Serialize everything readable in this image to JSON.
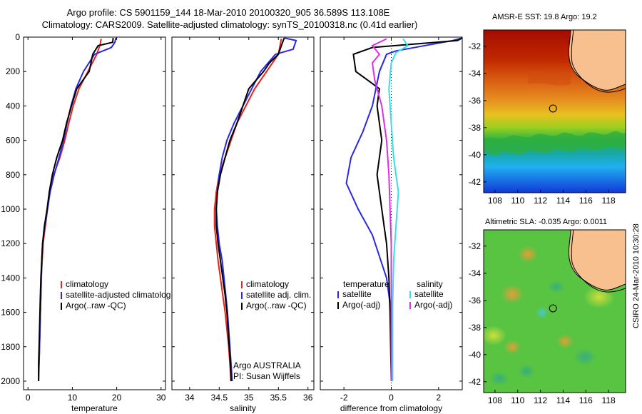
{
  "title_line1": "Argo profile: CS 5901159_144 18-Mar-2010 20100320_905 36.589S 113.108E",
  "title_line2": "Climatology: CARS2009. Satellite-adjusted climatology: synTS_20100318.nc (0.41d earlier)",
  "credit": "CSIRO 24-Mar-2010 10:30:28",
  "colors": {
    "climatology": "#e8221c",
    "satellite": "#2828e6",
    "argo": "#000000",
    "salinity_satellite": "#36e0e6",
    "salinity_argo": "#e02ee6",
    "land": "#f7c08e"
  },
  "chart_data": [
    {
      "type": "line",
      "panel": "temperature",
      "xlabel": "temperature",
      "ylabel": "",
      "xlim": [
        -1,
        31
      ],
      "ylim": [
        2050,
        0
      ],
      "y_reversed": true,
      "xticks": [
        0,
        10,
        20,
        30
      ],
      "yticks": [
        0,
        200,
        400,
        600,
        800,
        1000,
        1200,
        1400,
        1600,
        1800,
        2000
      ],
      "legend_items": [
        "climatology",
        "satellite-adjusted climatolog",
        "Argo(..raw -QC)"
      ],
      "series": [
        {
          "name": "climatology",
          "color_key": "climatology",
          "points": [
            [
              16.5,
              10
            ],
            [
              16.3,
              40
            ],
            [
              15.5,
              100
            ],
            [
              13.5,
              200
            ],
            [
              11.5,
              300
            ],
            [
              10.2,
              400
            ],
            [
              9.2,
              500
            ],
            [
              8.3,
              600
            ],
            [
              7.2,
              700
            ],
            [
              5.8,
              800
            ],
            [
              4.9,
              900
            ],
            [
              4.4,
              1000
            ],
            [
              3.9,
              1100
            ],
            [
              3.4,
              1200
            ],
            [
              3.2,
              1300
            ],
            [
              3.0,
              1400
            ],
            [
              2.9,
              1500
            ],
            [
              2.8,
              1600
            ],
            [
              2.7,
              1700
            ],
            [
              2.6,
              1800
            ],
            [
              2.5,
              1900
            ]
          ]
        },
        {
          "name": "satellite-adjusted climatolog",
          "color_key": "satellite",
          "points": [
            [
              19.8,
              5
            ],
            [
              19.6,
              30
            ],
            [
              18.8,
              60
            ],
            [
              15.0,
              100
            ],
            [
              12.5,
              200
            ],
            [
              10.8,
              300
            ],
            [
              9.7,
              400
            ],
            [
              8.8,
              500
            ],
            [
              8.0,
              600
            ],
            [
              7.0,
              700
            ],
            [
              5.9,
              800
            ],
            [
              5.0,
              900
            ],
            [
              4.4,
              1000
            ],
            [
              3.8,
              1100
            ],
            [
              3.3,
              1200
            ],
            [
              3.1,
              1300
            ],
            [
              3.0,
              1400
            ],
            [
              2.9,
              1500
            ],
            [
              2.8,
              1600
            ],
            [
              2.7,
              1700
            ],
            [
              2.6,
              1800
            ],
            [
              2.5,
              1900
            ],
            [
              2.4,
              2000
            ]
          ]
        },
        {
          "name": "Argo(..raw -QC)",
          "color_key": "argo",
          "points": [
            [
              19.2,
              5
            ],
            [
              19.1,
              30
            ],
            [
              15.8,
              50
            ],
            [
              14.6,
              100
            ],
            [
              13.8,
              200
            ],
            [
              11.0,
              300
            ],
            [
              9.8,
              400
            ],
            [
              8.7,
              500
            ],
            [
              7.8,
              600
            ],
            [
              6.5,
              700
            ],
            [
              5.5,
              800
            ],
            [
              4.8,
              900
            ],
            [
              4.3,
              1000
            ],
            [
              3.7,
              1100
            ],
            [
              3.3,
              1200
            ],
            [
              3.1,
              1300
            ],
            [
              2.9,
              1400
            ],
            [
              2.8,
              1500
            ],
            [
              2.7,
              1600
            ],
            [
              2.6,
              1700
            ],
            [
              2.5,
              1800
            ],
            [
              2.4,
              1900
            ],
            [
              2.4,
              2000
            ]
          ]
        }
      ]
    },
    {
      "type": "line",
      "panel": "salinity",
      "xlabel": "salinity",
      "ylabel": "",
      "xlim": [
        33.7,
        36.1
      ],
      "ylim": [
        2050,
        0
      ],
      "y_reversed": true,
      "xticks": [
        34,
        34.5,
        35,
        35.5,
        36
      ],
      "legend_items": [
        "climatology",
        "satellite adj. clim.",
        "Argo(..raw -QC)"
      ],
      "annotation": [
        "Argo AUSTRALIA",
        "PI: Susan Wijffels"
      ],
      "series": [
        {
          "name": "climatology",
          "color_key": "climatology",
          "points": [
            [
              35.55,
              10
            ],
            [
              35.5,
              100
            ],
            [
              35.3,
              200
            ],
            [
              35.1,
              300
            ],
            [
              34.95,
              400
            ],
            [
              34.8,
              500
            ],
            [
              34.7,
              600
            ],
            [
              34.6,
              700
            ],
            [
              34.5,
              800
            ],
            [
              34.45,
              900
            ],
            [
              34.42,
              1000
            ],
            [
              34.42,
              1100
            ],
            [
              34.45,
              1200
            ],
            [
              34.48,
              1300
            ],
            [
              34.52,
              1400
            ],
            [
              34.56,
              1500
            ],
            [
              34.6,
              1600
            ],
            [
              34.63,
              1700
            ],
            [
              34.66,
              1800
            ],
            [
              34.68,
              1900
            ],
            [
              34.7,
              2000
            ]
          ]
        },
        {
          "name": "satellite adj. clim.",
          "color_key": "satellite",
          "points": [
            [
              35.6,
              5
            ],
            [
              35.8,
              20
            ],
            [
              35.75,
              70
            ],
            [
              35.45,
              100
            ],
            [
              35.2,
              200
            ],
            [
              35.05,
              300
            ],
            [
              34.9,
              400
            ],
            [
              34.75,
              500
            ],
            [
              34.63,
              600
            ],
            [
              34.55,
              700
            ],
            [
              34.5,
              800
            ],
            [
              34.47,
              900
            ],
            [
              34.45,
              1000
            ],
            [
              34.47,
              1100
            ],
            [
              34.5,
              1200
            ],
            [
              34.55,
              1300
            ],
            [
              34.58,
              1400
            ],
            [
              34.61,
              1500
            ],
            [
              34.64,
              1600
            ],
            [
              34.66,
              1700
            ],
            [
              34.68,
              1800
            ],
            [
              34.7,
              1900
            ],
            [
              34.72,
              2000
            ]
          ]
        },
        {
          "name": "Argo(..raw -QC)",
          "color_key": "argo",
          "points": [
            [
              35.6,
              5
            ],
            [
              35.55,
              50
            ],
            [
              35.5,
              100
            ],
            [
              35.35,
              150
            ],
            [
              35.25,
              200
            ],
            [
              35.0,
              300
            ],
            [
              34.9,
              400
            ],
            [
              34.8,
              500
            ],
            [
              34.68,
              600
            ],
            [
              34.6,
              700
            ],
            [
              34.52,
              800
            ],
            [
              34.47,
              900
            ],
            [
              34.45,
              1000
            ],
            [
              34.45,
              1100
            ],
            [
              34.48,
              1200
            ],
            [
              34.52,
              1300
            ],
            [
              34.56,
              1400
            ],
            [
              34.6,
              1500
            ],
            [
              34.63,
              1600
            ],
            [
              34.65,
              1700
            ],
            [
              34.67,
              1800
            ],
            [
              34.69,
              1900
            ],
            [
              34.7,
              2000
            ]
          ]
        }
      ]
    },
    {
      "type": "line",
      "panel": "difference",
      "xlabel": "difference from climatology",
      "ylabel": "",
      "xlim": [
        -3,
        3
      ],
      "ylim": [
        2050,
        0
      ],
      "y_reversed": true,
      "xticks": [
        -2,
        0,
        2
      ],
      "legend_headers": [
        "temperature",
        "salinity"
      ],
      "legend_items": [
        "satellite",
        "Argo(-adj)",
        "satellite",
        "Argo(-adj)"
      ],
      "series": [
        {
          "name": "satellite",
          "group": "temperature",
          "color_key": "satellite",
          "points": [
            [
              3.0,
              5
            ],
            [
              2.6,
              20
            ],
            [
              0.2,
              80
            ],
            [
              -0.2,
              100
            ],
            [
              -0.5,
              200
            ],
            [
              -0.8,
              400
            ],
            [
              -1.2,
              550
            ],
            [
              -1.7,
              700
            ],
            [
              -1.9,
              850
            ],
            [
              -1.4,
              1000
            ],
            [
              -0.8,
              1150
            ],
            [
              -0.2,
              1400
            ],
            [
              0,
              1600
            ],
            [
              0,
              2000
            ]
          ]
        },
        {
          "name": "Argo(-adj)",
          "group": "temperature",
          "color_key": "argo",
          "points": [
            [
              3.0,
              5
            ],
            [
              2.8,
              20
            ],
            [
              -0.8,
              60
            ],
            [
              -1.6,
              100
            ],
            [
              -1.5,
              200
            ],
            [
              -1.0,
              250
            ],
            [
              -0.5,
              300
            ],
            [
              -0.6,
              400
            ],
            [
              -0.5,
              500
            ],
            [
              -0.4,
              600
            ],
            [
              -0.6,
              800
            ],
            [
              -0.4,
              1000
            ],
            [
              -0.3,
              1100
            ],
            [
              -0.2,
              1200
            ],
            [
              -0.1,
              1400
            ],
            [
              -0.05,
              1600
            ],
            [
              0,
              2000
            ]
          ]
        },
        {
          "name": "satellite",
          "group": "salinity",
          "color_key": "salinity_satellite",
          "points": [
            [
              0.5,
              10
            ],
            [
              0.7,
              50
            ],
            [
              0.2,
              90
            ],
            [
              0.0,
              150
            ],
            [
              -0.1,
              300
            ],
            [
              0.0,
              500
            ],
            [
              0.1,
              700
            ],
            [
              0.2,
              800
            ],
            [
              0.3,
              900
            ],
            [
              0.2,
              1100
            ],
            [
              0.1,
              1300
            ],
            [
              0.05,
              1600
            ],
            [
              0.05,
              2000
            ]
          ]
        },
        {
          "name": "Argo(-adj)",
          "group": "salinity",
          "color_key": "salinity_argo",
          "points": [
            [
              -0.2,
              10
            ],
            [
              -0.8,
              50
            ],
            [
              -0.5,
              100
            ],
            [
              -0.8,
              150
            ],
            [
              -0.7,
              250
            ],
            [
              -0.4,
              400
            ],
            [
              -0.2,
              600
            ],
            [
              -0.1,
              800
            ],
            [
              -0.05,
              1000
            ],
            [
              0,
              1200
            ],
            [
              0,
              1500
            ],
            [
              0,
              2000
            ]
          ]
        }
      ]
    },
    {
      "type": "heatmap",
      "panel": "sst_map",
      "title": "AMSR-E SST: 19.8 Argo: 19.2",
      "xlim": [
        107,
        119.5
      ],
      "ylim": [
        -42.8,
        -30.8
      ],
      "xticks": [
        108,
        110,
        112,
        114,
        116,
        118
      ],
      "yticks": [
        -32,
        -34,
        -36,
        -38,
        -40,
        -42
      ],
      "argo_location": [
        113.108,
        -36.589
      ],
      "sst_argo": 19.2,
      "sst_satellite": 19.8
    },
    {
      "type": "heatmap",
      "panel": "sla_map",
      "title": "Altimetric SLA: -0.035 Argo: 0.0011",
      "xlim": [
        107,
        119.5
      ],
      "ylim": [
        -42.8,
        -30.8
      ],
      "xticks": [
        108,
        110,
        112,
        114,
        116,
        118
      ],
      "yticks": [
        -32,
        -34,
        -36,
        -38,
        -40,
        -42
      ],
      "argo_location": [
        113.108,
        -36.589
      ],
      "sla_argo": 0.0011,
      "sla_satellite": -0.035
    }
  ]
}
